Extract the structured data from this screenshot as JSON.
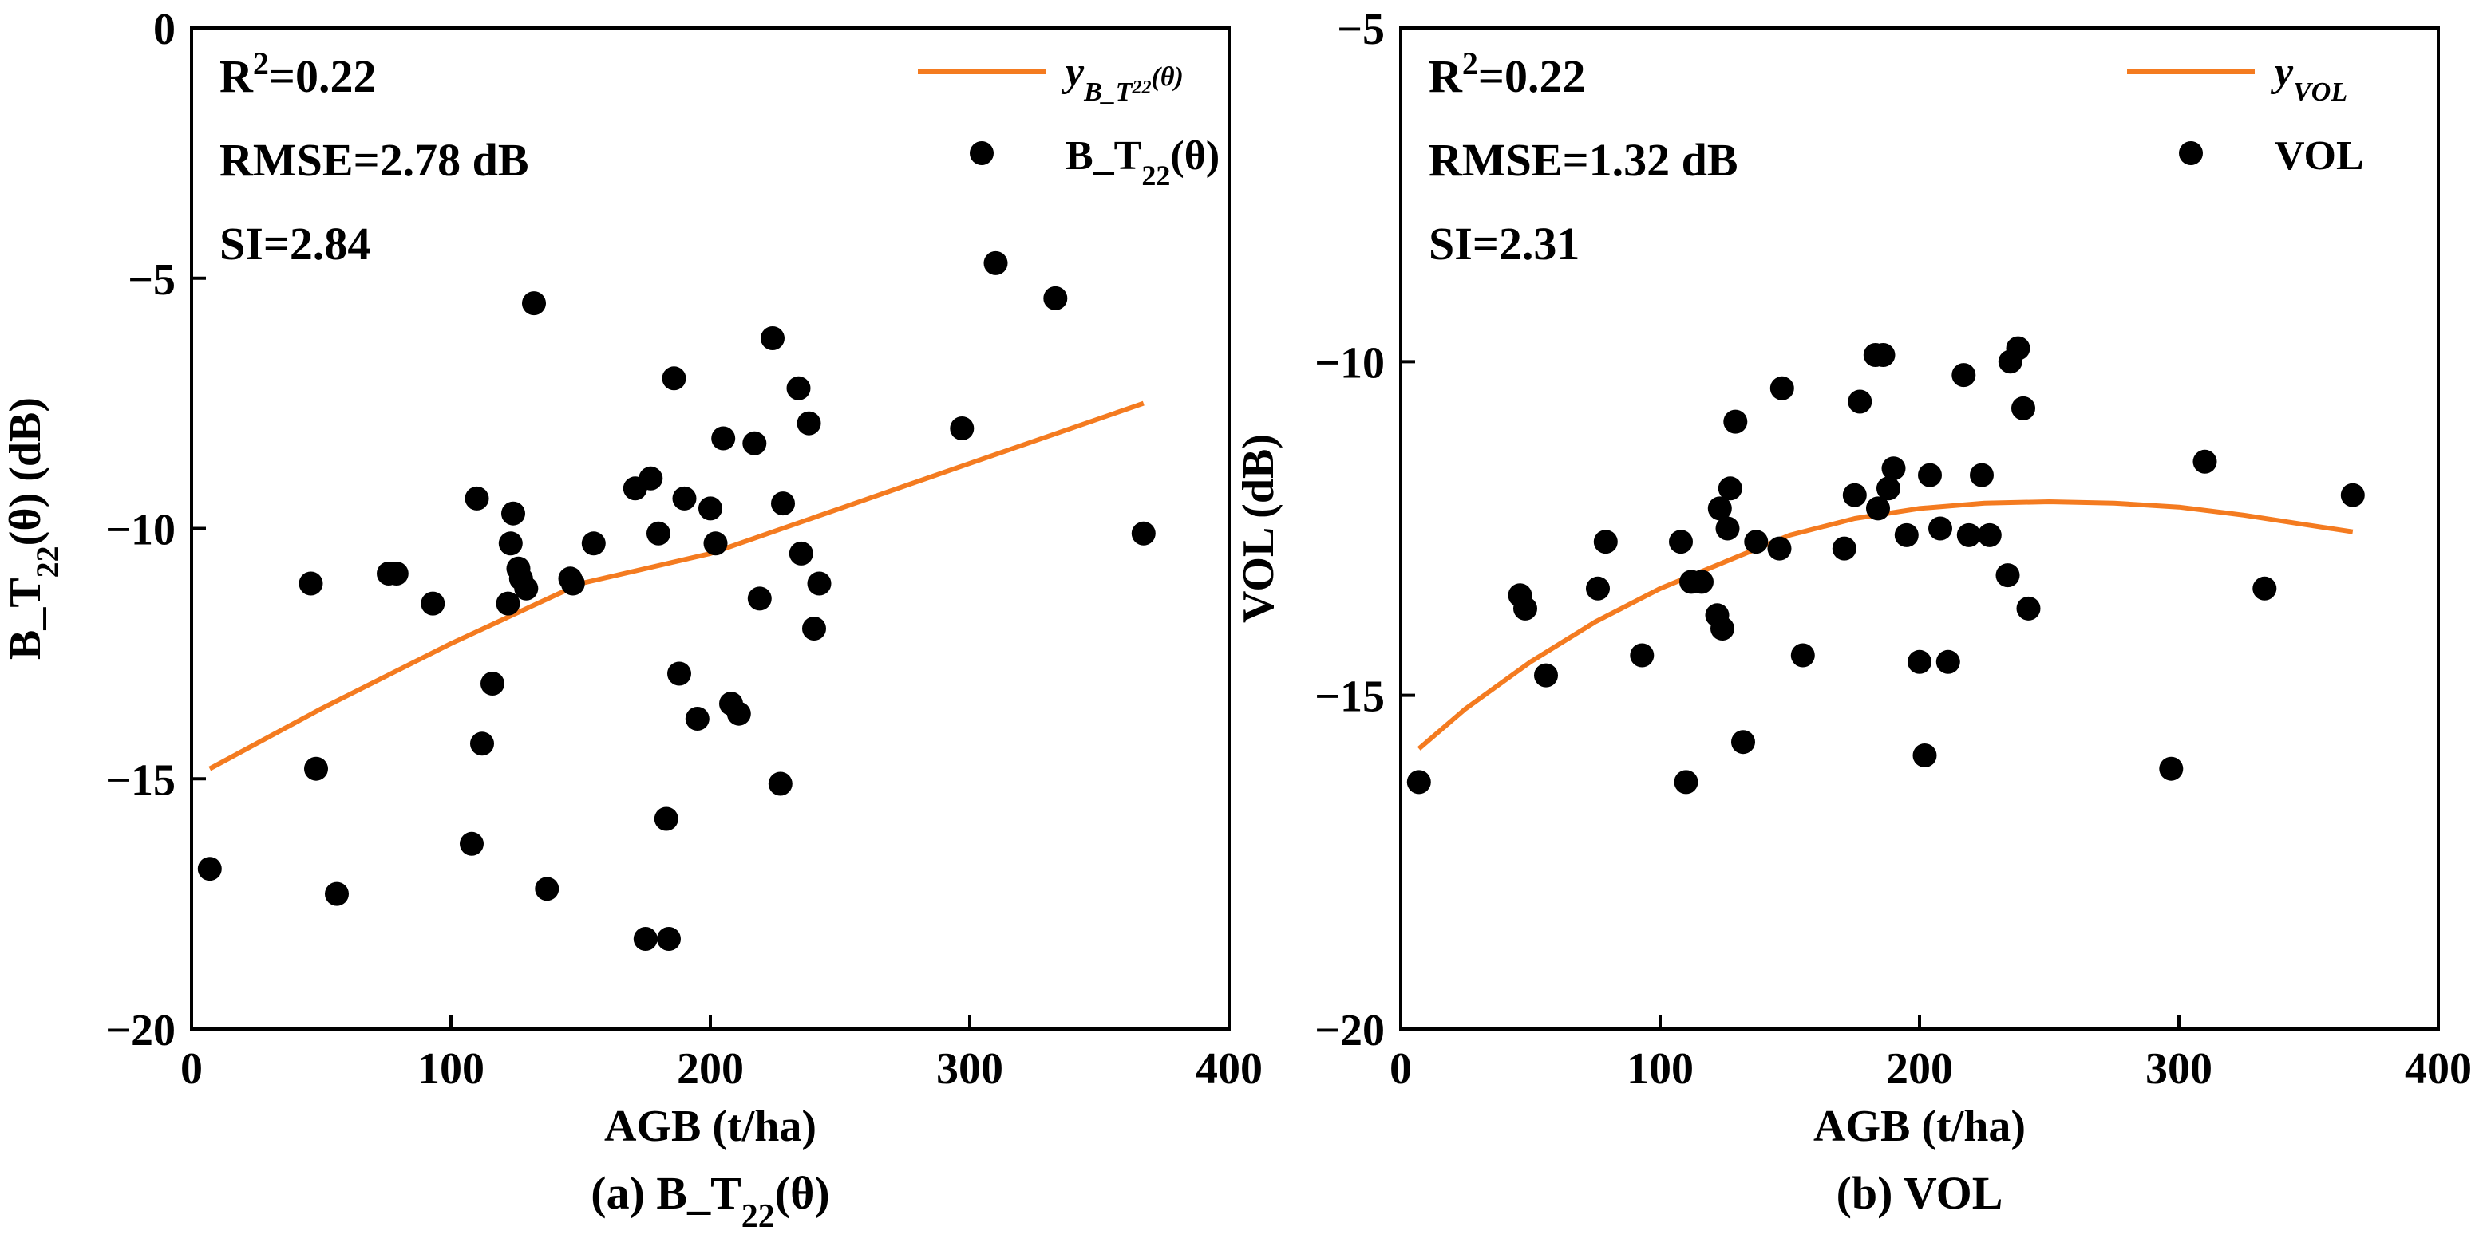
{
  "chart_data": [
    {
      "type": "scatter",
      "caption": {
        "prefix": "(a) B_T",
        "sub": "22",
        "suffix": "(θ)"
      },
      "xlabel": "AGB (t/ha)",
      "ylabel": {
        "prefix": "B_T",
        "sub": "22",
        "suffix": "(θ) (dB)"
      },
      "xlim": [
        0,
        400
      ],
      "ylim": [
        -20,
        0
      ],
      "xticks": [
        0,
        100,
        200,
        300,
        400
      ],
      "yticks": [
        0,
        -5,
        -10,
        -15,
        -20
      ],
      "ytick_labels": [
        "0",
        "−5",
        "−10",
        "−15",
        "−20"
      ],
      "stats": {
        "r2_label": "R",
        "r2_sup": "2",
        "r2_value": "=0.22",
        "rmse": "RMSE=2.78 dB",
        "si": "SI=2.84"
      },
      "legend": {
        "line": {
          "main": "y",
          "sub": "B_T",
          "subsub": "22",
          "tail": "(θ)"
        },
        "points": {
          "prefix": "B_T",
          "sub": "22",
          "suffix": "(θ)"
        }
      },
      "line_color": "#F47B20",
      "point_color": "#000000",
      "fit_line": {
        "x": [
          7,
          50,
          100,
          150,
          200,
          250,
          300,
          367
        ],
        "y": [
          -14.8,
          -13.6,
          -12.3,
          -11.1,
          -10.5,
          -9.6,
          -8.7,
          -7.5
        ]
      },
      "points": {
        "x": [
          7,
          46,
          48,
          56,
          76,
          79,
          93,
          108,
          110,
          112,
          116,
          122,
          123,
          124,
          126,
          127,
          129,
          132,
          137,
          146,
          147,
          155,
          171,
          177,
          180,
          183,
          186,
          188,
          190,
          195,
          200,
          202,
          205,
          208,
          211,
          217,
          219,
          224,
          227,
          228,
          234,
          235,
          238,
          240,
          242,
          297,
          310,
          333,
          367,
          184,
          175
        ],
        "y": [
          -16.8,
          -11.1,
          -14.8,
          -17.3,
          -10.9,
          -10.9,
          -11.5,
          -16.3,
          -9.4,
          -14.3,
          -13.1,
          -11.5,
          -10.3,
          -9.7,
          -10.8,
          -11.0,
          -11.2,
          -5.5,
          -17.2,
          -11.0,
          -11.1,
          -10.3,
          -9.2,
          -9.0,
          -10.1,
          -15.8,
          -7.0,
          -12.9,
          -9.4,
          -13.8,
          -9.6,
          -10.3,
          -8.2,
          -13.5,
          -13.7,
          -8.3,
          -11.4,
          -6.2,
          -15.1,
          -9.5,
          -7.2,
          -10.5,
          -7.9,
          -12.0,
          -11.1,
          -8.0,
          -4.7,
          -5.4,
          -10.1,
          -18.2,
          -18.2
        ]
      }
    },
    {
      "type": "scatter",
      "caption": {
        "text": "(b) VOL"
      },
      "xlabel": "AGB (t/ha)",
      "ylabel": {
        "text": "VOL (dB)"
      },
      "xlim": [
        0,
        400
      ],
      "ylim": [
        -20,
        -5
      ],
      "xticks": [
        0,
        100,
        200,
        300,
        400
      ],
      "yticks": [
        -5,
        -10,
        -15,
        -20
      ],
      "ytick_labels": [
        "−5",
        "−10",
        "−15",
        "−20"
      ],
      "stats": {
        "r2_label": "R",
        "r2_sup": "2",
        "r2_value": "=0.22",
        "rmse": "RMSE=1.32 dB",
        "si": "SI=2.31"
      },
      "legend": {
        "line": {
          "main": "y",
          "sub": "VOL"
        },
        "points": {
          "text": "VOL"
        }
      },
      "line_color": "#F47B20",
      "point_color": "#000000",
      "fit_line": {
        "x": [
          7,
          25,
          50,
          75,
          100,
          125,
          150,
          175,
          200,
          225,
          250,
          275,
          300,
          325,
          350,
          367
        ],
        "y": [
          -15.8,
          -15.2,
          -14.5,
          -13.9,
          -13.4,
          -13.0,
          -12.6,
          -12.35,
          -12.2,
          -12.12,
          -12.1,
          -12.12,
          -12.18,
          -12.3,
          -12.45,
          -12.55
        ]
      },
      "points": {
        "x": [
          7,
          46,
          48,
          56,
          76,
          79,
          93,
          108,
          110,
          112,
          116,
          122,
          123,
          124,
          126,
          127,
          129,
          132,
          137,
          146,
          147,
          155,
          171,
          175,
          177,
          183,
          184,
          186,
          188,
          190,
          195,
          200,
          202,
          204,
          208,
          211,
          217,
          219,
          224,
          227,
          234,
          235,
          238,
          240,
          242,
          297,
          310,
          333,
          367
        ],
        "y": [
          -16.3,
          -13.5,
          -13.7,
          -14.7,
          -13.4,
          -12.7,
          -14.4,
          -12.7,
          -16.3,
          -13.3,
          -13.3,
          -13.8,
          -12.2,
          -14.0,
          -12.5,
          -11.9,
          -10.9,
          -15.7,
          -12.7,
          -12.8,
          -10.4,
          -14.4,
          -12.8,
          -12.0,
          -10.6,
          -9.9,
          -12.2,
          -9.9,
          -11.9,
          -11.6,
          -12.6,
          -14.5,
          -15.9,
          -11.7,
          -12.5,
          -14.5,
          -10.2,
          -12.6,
          -11.7,
          -12.6,
          -13.2,
          -10.0,
          -9.8,
          -10.7,
          -13.7,
          -16.1,
          -11.5,
          -13.4,
          -12.0
        ]
      }
    }
  ]
}
